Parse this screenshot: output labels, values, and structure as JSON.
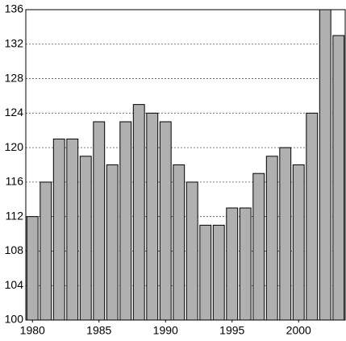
{
  "chart_data": {
    "type": "bar",
    "x": [
      1980,
      1981,
      1982,
      1983,
      1984,
      1985,
      1986,
      1987,
      1988,
      1989,
      1990,
      1991,
      1992,
      1993,
      1994,
      1995,
      1996,
      1997,
      1998,
      1999,
      2000,
      2001,
      2002,
      2003
    ],
    "values": [
      112,
      116,
      121,
      121,
      119,
      123,
      118,
      123,
      125,
      124,
      123,
      118,
      116,
      111,
      111,
      113,
      113,
      117,
      119,
      120,
      118,
      124,
      136,
      133
    ],
    "color": "#b0b0b0",
    "xlim": [
      1979.5,
      2003.5
    ],
    "xticks": [
      1980,
      1985,
      1990,
      1995,
      2000
    ],
    "ylim": [
      100,
      136
    ],
    "yticks": [
      100,
      104,
      108,
      112,
      116,
      120,
      124,
      128,
      132,
      136
    ],
    "grid": true
  }
}
